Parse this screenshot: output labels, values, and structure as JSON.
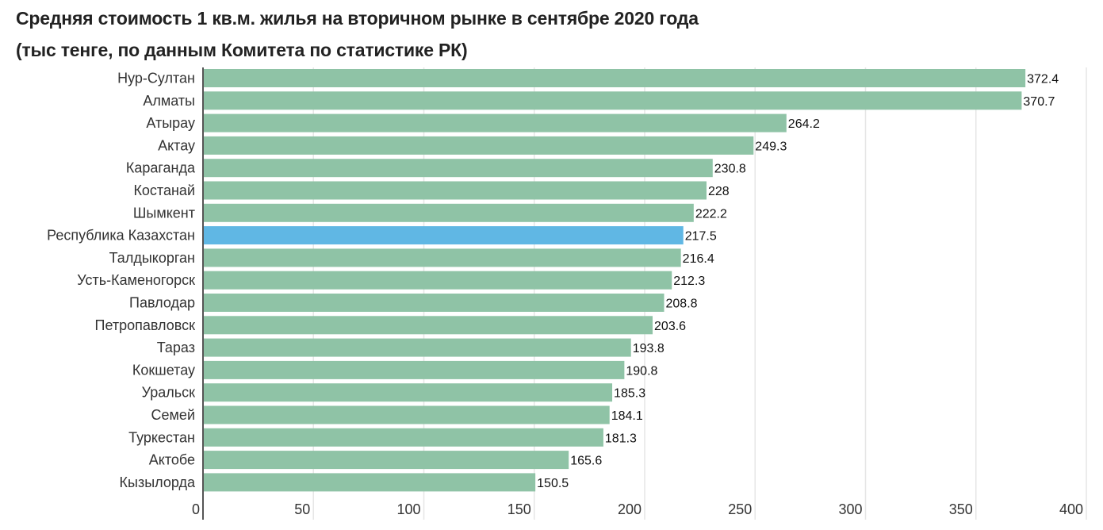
{
  "chart_data": {
    "type": "bar",
    "orientation": "horizontal",
    "title": "Средняя стоимость 1 кв.м. жилья на вторичном рынке в сентябре 2020 года",
    "subtitle": "(тыс тенге, по данным Комитета по статистике РК)",
    "categories": [
      "Нур-Султан",
      "Алматы",
      "Атырау",
      "Актау",
      "Караганда",
      "Костанай",
      "Шымкент",
      "Республика Казахстан",
      "Талдыкорган",
      "Усть-Каменогорск",
      "Павлодар",
      "Петропавловск",
      "Тараз",
      "Кокшетау",
      "Уральск",
      "Семей",
      "Туркестан",
      "Актобе",
      "Кызылорда"
    ],
    "values": [
      372.4,
      370.7,
      264.2,
      249.3,
      230.8,
      228,
      222.2,
      217.5,
      216.4,
      212.3,
      208.8,
      203.6,
      193.8,
      190.8,
      185.3,
      184.1,
      181.3,
      165.6,
      150.5
    ],
    "value_labels": [
      "372.4",
      "370.7",
      "264.2",
      "249.3",
      "230.8",
      "228",
      "222.2",
      "217.5",
      "216.4",
      "212.3",
      "208.8",
      "203.6",
      "193.8",
      "190.8",
      "185.3",
      "184.1",
      "181.3",
      "165.6",
      "150.5"
    ],
    "highlight_category": "Республика Казахстан",
    "xlim": [
      0,
      400
    ],
    "xticks": [
      0,
      50,
      100,
      150,
      200,
      250,
      300,
      350,
      400
    ],
    "xtick_labels": [
      "0",
      "50",
      "100",
      "150",
      "200",
      "250",
      "300",
      "350",
      "400"
    ],
    "grid": true,
    "colors": {
      "bar": "#8fc3a6",
      "highlight": "#60b7e4",
      "grid": "#e6e6e6",
      "axis": "#555555"
    }
  }
}
